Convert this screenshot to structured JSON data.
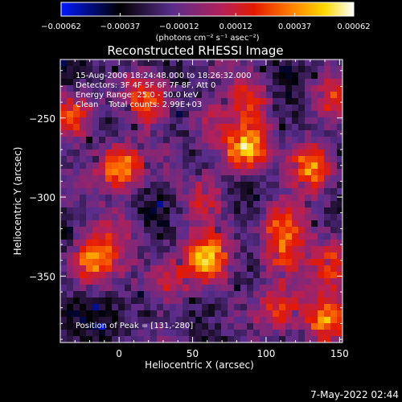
{
  "chart_data": {
    "type": "heatmap",
    "title": "Reconstructed RHESSI Image",
    "xlabel": "Heliocentric X (arcsec)",
    "ylabel": "Heliocentric Y (arcsec)",
    "xlim": [
      -40,
      152
    ],
    "ylim": [
      -392,
      -213
    ],
    "x_ticks": [
      0,
      50,
      100,
      150
    ],
    "x_tick_labels": [
      "0",
      "50",
      "100",
      "150"
    ],
    "y_ticks": [
      -250,
      -300,
      -350
    ],
    "y_tick_labels": [
      "−250",
      "−300",
      "−350"
    ],
    "colorbar": {
      "range": [
        -0.00062,
        0.00062
      ],
      "ticks": [
        -0.00062,
        -0.00037,
        -0.00012,
        0.00012,
        0.00037,
        0.00062
      ],
      "tick_labels": [
        "−0.00062",
        "−0.00037",
        "−0.00012",
        "0.00012",
        "0.00037",
        "0.00062"
      ],
      "unit_label": "(photons cm⁻² s⁻¹ asec⁻²)",
      "colormap": [
        "#0018ff",
        "#000000",
        "#5a2d8c",
        "#b3205a",
        "#e41a00",
        "#ff7a00",
        "#ffd800",
        "#ffffff"
      ]
    },
    "annotations": [
      "15-Aug-2006 18:24:48.000 to 18:26:32.000",
      "Detectors: 3F 4F 5F 6F 7F 8F, Att 0",
      "Energy Range: 25.0 - 50.0 keV",
      "Clean    Total counts: 2.99E+03"
    ],
    "peak_label": "Position of Peak = [131,-280]",
    "peak": [
      131,
      -280
    ],
    "sources": [
      {
        "x": 131,
        "y": -280,
        "amp": 1.0
      },
      {
        "x": 85,
        "y": -270,
        "amp": 0.85
      },
      {
        "x": 0,
        "y": -280,
        "amp": 0.9
      },
      {
        "x": -30,
        "y": -250,
        "amp": 0.7
      },
      {
        "x": 20,
        "y": -240,
        "amp": 0.65
      },
      {
        "x": 90,
        "y": -235,
        "amp": 0.6
      },
      {
        "x": 60,
        "y": -300,
        "amp": 0.55
      },
      {
        "x": 110,
        "y": -320,
        "amp": 0.55
      },
      {
        "x": 60,
        "y": -340,
        "amp": 0.85
      },
      {
        "x": 110,
        "y": -340,
        "amp": 0.6
      },
      {
        "x": -20,
        "y": -340,
        "amp": 0.75
      },
      {
        "x": 35,
        "y": -355,
        "amp": 0.6
      },
      {
        "x": 140,
        "y": -380,
        "amp": 0.85
      },
      {
        "x": 110,
        "y": -370,
        "amp": 0.55
      },
      {
        "x": 0,
        "y": -320,
        "amp": 0.45
      },
      {
        "x": 145,
        "y": -340,
        "amp": 0.6
      },
      {
        "x": 60,
        "y": -250,
        "amp": 0.45
      },
      {
        "x": 145,
        "y": -235,
        "amp": 0.5
      }
    ]
  },
  "footer": {
    "timestamp": "7-May-2022 02:44"
  }
}
